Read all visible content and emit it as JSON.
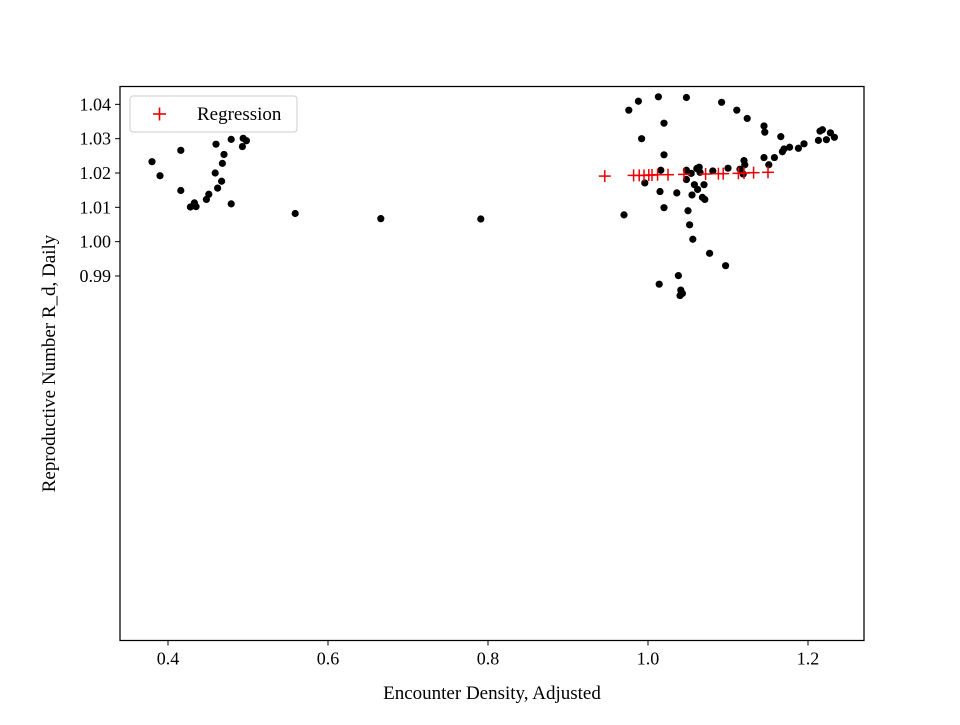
{
  "chart_data": {
    "type": "scatter",
    "xlabel": "Encounter Density, Adjusted",
    "ylabel": "Reproductive Number R_d, Daily",
    "xlim": [
      0.34,
      1.27
    ],
    "ylim": [
      0.8838,
      1.0452
    ],
    "x_ticks": [
      0.4,
      0.6,
      0.8,
      1.0,
      1.2
    ],
    "x_tick_labels": [
      "0.4",
      "0.6",
      "0.8",
      "1.0",
      "1.2"
    ],
    "y_ticks": [
      0.99,
      1.0,
      1.01,
      1.02,
      1.03,
      1.04
    ],
    "y_tick_labels": [
      "0.99",
      "1.00",
      "1.01",
      "1.02",
      "1.03",
      "1.04"
    ],
    "grid": false,
    "legend_position": "top-left",
    "colors": {
      "observed": "#000000",
      "regression": "#ee0000"
    },
    "legend": [
      {
        "label": "Regression",
        "marker": "+",
        "color": "#ee0000"
      }
    ],
    "series": [
      {
        "marker": "dot",
        "points": [
          [
            0.38,
            1.0233
          ],
          [
            0.39,
            1.0192
          ],
          [
            0.416,
            1.0266
          ],
          [
            0.416,
            1.0149
          ],
          [
            0.428,
            1.0101
          ],
          [
            0.433,
            1.0113
          ],
          [
            0.435,
            1.0102
          ],
          [
            0.448,
            1.0123
          ],
          [
            0.451,
            1.0138
          ],
          [
            0.459,
            1.02
          ],
          [
            0.46,
            1.0284
          ],
          [
            0.462,
            1.0156
          ],
          [
            0.467,
            1.0176
          ],
          [
            0.468,
            1.0228
          ],
          [
            0.47,
            1.0254
          ],
          [
            0.479,
            1.0298
          ],
          [
            0.479,
            1.011
          ],
          [
            0.493,
            1.0277
          ],
          [
            0.494,
            1.0301
          ],
          [
            0.498,
            1.0294
          ],
          [
            0.559,
            1.0082
          ],
          [
            0.666,
            1.0067
          ],
          [
            0.791,
            1.0066
          ],
          [
            0.97,
            1.0078
          ],
          [
            0.976,
            1.0383
          ],
          [
            0.988,
            1.0409
          ],
          [
            0.992,
            1.03
          ],
          [
            0.996,
            1.0171
          ],
          [
            1.013,
            1.0422
          ],
          [
            1.014,
            0.9876
          ],
          [
            1.015,
            1.0146
          ],
          [
            1.016,
            1.0208
          ],
          [
            1.02,
            1.0345
          ],
          [
            1.02,
            1.0253
          ],
          [
            1.02,
            1.0099
          ],
          [
            1.036,
            1.0142
          ],
          [
            1.038,
            0.9901
          ],
          [
            1.04,
            0.9843
          ],
          [
            1.041,
            0.9859
          ],
          [
            1.043,
            0.9849
          ],
          [
            1.048,
            1.042
          ],
          [
            1.048,
            1.0208
          ],
          [
            1.048,
            1.0181
          ],
          [
            1.05,
            1.009
          ],
          [
            1.052,
            1.0049
          ],
          [
            1.054,
            1.0199
          ],
          [
            1.055,
            1.0136
          ],
          [
            1.056,
            1.0007
          ],
          [
            1.058,
            1.0166
          ],
          [
            1.061,
            1.0213
          ],
          [
            1.062,
            1.0152
          ],
          [
            1.064,
            1.0217
          ],
          [
            1.065,
            1.0202
          ],
          [
            1.068,
            1.0129
          ],
          [
            1.07,
            1.0166
          ],
          [
            1.071,
            1.0123
          ],
          [
            1.077,
            0.9966
          ],
          [
            1.081,
            1.0206
          ],
          [
            1.092,
            1.0406
          ],
          [
            1.097,
            0.993
          ],
          [
            1.1,
            1.0214
          ],
          [
            1.111,
            1.0383
          ],
          [
            1.115,
            1.0211
          ],
          [
            1.119,
            1.0197
          ],
          [
            1.12,
            1.0236
          ],
          [
            1.121,
            1.0224
          ],
          [
            1.124,
            1.0359
          ],
          [
            1.145,
            1.0245
          ],
          [
            1.145,
            1.0337
          ],
          [
            1.146,
            1.0319
          ],
          [
            1.151,
            1.0224
          ],
          [
            1.158,
            1.0245
          ],
          [
            1.166,
            1.0306
          ],
          [
            1.168,
            1.0262
          ],
          [
            1.17,
            1.027
          ],
          [
            1.177,
            1.0275
          ],
          [
            1.188,
            1.0272
          ],
          [
            1.195,
            1.0285
          ],
          [
            1.213,
            1.0295
          ],
          [
            1.215,
            1.0322
          ],
          [
            1.218,
            1.0326
          ],
          [
            1.223,
            1.0297
          ],
          [
            1.228,
            1.0317
          ],
          [
            1.233,
            1.0304
          ]
        ]
      },
      {
        "name": "Regression",
        "marker": "+",
        "points": [
          [
            0.946,
            1.0191
          ],
          [
            0.982,
            1.0193
          ],
          [
            0.989,
            1.0193
          ],
          [
            0.995,
            1.0193
          ],
          [
            1.001,
            1.0194
          ],
          [
            1.005,
            1.0194
          ],
          [
            1.012,
            1.0195
          ],
          [
            1.025,
            1.0195
          ],
          [
            1.045,
            1.0196
          ],
          [
            1.072,
            1.0197
          ],
          [
            1.088,
            1.0198
          ],
          [
            1.094,
            1.0198
          ],
          [
            1.113,
            1.0199
          ],
          [
            1.12,
            1.02
          ],
          [
            1.132,
            1.0201
          ],
          [
            1.15,
            1.0202
          ]
        ]
      }
    ]
  }
}
